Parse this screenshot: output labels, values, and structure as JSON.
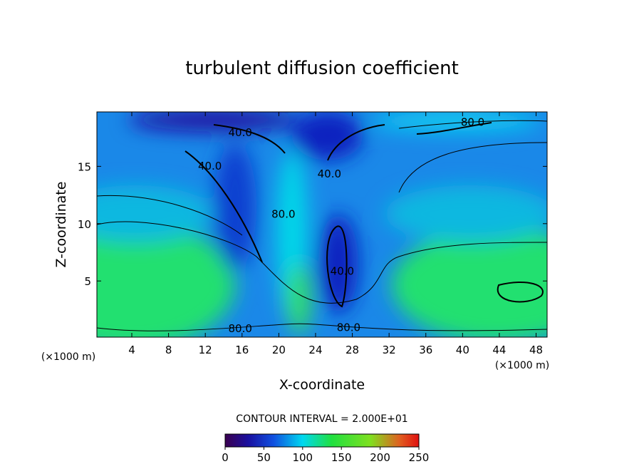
{
  "chart_data": {
    "type": "contour",
    "title": "turbulent diffusion coefficient",
    "x_label": "X-coordinate",
    "y_label": "Z-coordinate",
    "x_unit": "(×1000 m)",
    "y_unit": "(×1000 m)",
    "xlim": [
      0.2,
      49.2
    ],
    "ylim": [
      0.1,
      19.75
    ],
    "xticks": [
      4,
      8,
      12,
      16,
      20,
      24,
      28,
      32,
      36,
      40,
      44,
      48
    ],
    "yticks": [
      5,
      10,
      15
    ],
    "contour_interval": "CONTOUR INTERVAL = 2.000E+01",
    "contour_labels": [
      {
        "text": "40.0",
        "x": 15.8,
        "y": 18.0
      },
      {
        "text": "40.0",
        "x": 12.5,
        "y": 15.1
      },
      {
        "text": "40.0",
        "x": 25.5,
        "y": 14.4
      },
      {
        "text": "80.0",
        "x": 20.5,
        "y": 10.9
      },
      {
        "text": "40.0",
        "x": 26.9,
        "y": 5.9
      },
      {
        "text": "80.0",
        "x": 15.8,
        "y": 0.9
      },
      {
        "text": "80.0",
        "x": 27.6,
        "y": 1.0
      },
      {
        "text": "80.0",
        "x": 41.1,
        "y": 18.9
      }
    ],
    "colorbar": {
      "lim": [
        0,
        250
      ],
      "ticks": [
        0,
        50,
        100,
        150,
        200,
        250
      ]
    }
  }
}
